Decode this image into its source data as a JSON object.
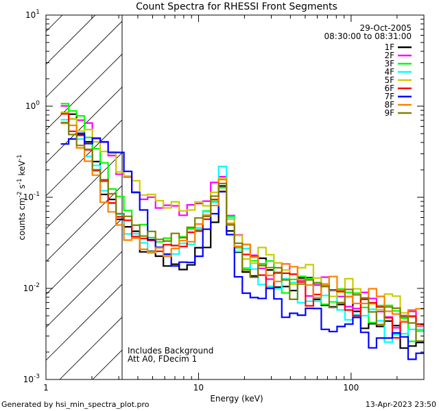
{
  "footer": {
    "generated_by": "Generated by hsi_min_spectra_plot.pro",
    "timestamp": "13-Apr-2023 23:50"
  },
  "chart_data": {
    "type": "line",
    "title": "Count Spectra for RHESSI Front Segments",
    "xlabel": "Energy (keV)",
    "ylabel": "counts cm-2 s-1 keV-1",
    "xscale": "log",
    "yscale": "log",
    "xlim": [
      1,
      300
    ],
    "ylim": [
      0.001,
      10
    ],
    "x_ticks": [
      {
        "value": 1,
        "label": "1"
      },
      {
        "value": 10,
        "label": "10"
      },
      {
        "value": 100,
        "label": "100"
      }
    ],
    "y_ticks": [
      {
        "value": 10,
        "base": "10",
        "exp": "1"
      },
      {
        "value": 1,
        "base": "10",
        "exp": "0"
      },
      {
        "value": 0.1,
        "base": "10",
        "exp": "-1"
      },
      {
        "value": 0.01,
        "base": "10",
        "exp": "-2"
      },
      {
        "value": 0.001,
        "base": "10",
        "exp": "-3"
      }
    ],
    "date": "29-Oct-2005",
    "time_range": "08:30:00 to 08:31:00",
    "hatched_region": {
      "x_min": 1,
      "x_max": 3
    },
    "annotation": [
      "Includes Background",
      "Att A0, FDecim 1"
    ],
    "legend_position": "top-right",
    "series": [
      {
        "name": "1F",
        "color": "#000000",
        "values": [
          0.85,
          0.75,
          0.55,
          0.38,
          0.24,
          0.12,
          0.085,
          0.06,
          0.05,
          0.038,
          0.028,
          0.025,
          0.021,
          0.02,
          0.017,
          0.016,
          0.02,
          0.025,
          0.03,
          0.055,
          0.12,
          0.048,
          0.024,
          0.018,
          0.015,
          0.016,
          0.014,
          0.013,
          0.012,
          0.011,
          0.011,
          0.01,
          0.009,
          0.008,
          0.007,
          0.0065,
          0.006,
          0.0055,
          0.005,
          0.0045,
          0.004,
          0.0035,
          0.0032,
          0.003,
          0.0028,
          0.0026
        ]
      },
      {
        "name": "2F",
        "color": "#ff00ff",
        "values": [
          0.9,
          0.8,
          0.7,
          0.6,
          0.5,
          0.38,
          0.28,
          0.2,
          0.15,
          0.12,
          0.1,
          0.09,
          0.085,
          0.08,
          0.075,
          0.072,
          0.076,
          0.085,
          0.1,
          0.13,
          0.18,
          0.065,
          0.035,
          0.027,
          0.022,
          0.02,
          0.018,
          0.016,
          0.015,
          0.014,
          0.013,
          0.012,
          0.011,
          0.01,
          0.009,
          0.0085,
          0.008,
          0.0075,
          0.007,
          0.0065,
          0.006,
          0.0055,
          0.005,
          0.0045,
          0.0042,
          0.004
        ]
      },
      {
        "name": "3F",
        "color": "#00ff00",
        "values": [
          1.1,
          0.95,
          0.7,
          0.5,
          0.34,
          0.22,
          0.14,
          0.095,
          0.07,
          0.055,
          0.045,
          0.038,
          0.034,
          0.032,
          0.033,
          0.036,
          0.042,
          0.05,
          0.065,
          0.09,
          0.14,
          0.055,
          0.03,
          0.023,
          0.019,
          0.017,
          0.016,
          0.015,
          0.014,
          0.013,
          0.012,
          0.011,
          0.01,
          0.0095,
          0.009,
          0.0085,
          0.008,
          0.0075,
          0.007,
          0.0065,
          0.006,
          0.0055,
          0.005,
          0.0045,
          0.004,
          0.0038
        ]
      },
      {
        "name": "4F",
        "color": "#00ffff",
        "values": [
          0.8,
          0.65,
          0.45,
          0.3,
          0.2,
          0.13,
          0.085,
          0.06,
          0.045,
          0.037,
          0.031,
          0.028,
          0.025,
          0.024,
          0.025,
          0.028,
          0.034,
          0.045,
          0.065,
          0.1,
          0.2,
          0.06,
          0.028,
          0.02,
          0.016,
          0.014,
          0.012,
          0.011,
          0.01,
          0.0095,
          0.009,
          0.0085,
          0.008,
          0.0075,
          0.007,
          0.0065,
          0.006,
          0.0055,
          0.005,
          0.0045,
          0.004,
          0.0037,
          0.0035,
          0.0032,
          0.003,
          0.0028
        ]
      },
      {
        "name": "5F",
        "color": "#cccc00",
        "values": [
          0.8,
          0.7,
          0.6,
          0.5,
          0.42,
          0.34,
          0.27,
          0.21,
          0.17,
          0.14,
          0.12,
          0.1,
          0.09,
          0.085,
          0.08,
          0.075,
          0.076,
          0.08,
          0.09,
          0.11,
          0.15,
          0.065,
          0.035,
          0.028,
          0.024,
          0.022,
          0.02,
          0.019,
          0.018,
          0.016,
          0.015,
          0.014,
          0.013,
          0.012,
          0.011,
          0.01,
          0.0095,
          0.009,
          0.0085,
          0.008,
          0.0075,
          0.007,
          0.0065,
          0.006,
          0.0055,
          0.005
        ]
      },
      {
        "name": "6F",
        "color": "#ff0000",
        "values": [
          0.75,
          0.6,
          0.45,
          0.32,
          0.22,
          0.14,
          0.09,
          0.065,
          0.05,
          0.041,
          0.035,
          0.031,
          0.029,
          0.028,
          0.029,
          0.032,
          0.037,
          0.045,
          0.06,
          0.085,
          0.13,
          0.05,
          0.027,
          0.021,
          0.018,
          0.016,
          0.015,
          0.014,
          0.013,
          0.012,
          0.011,
          0.01,
          0.0095,
          0.009,
          0.0085,
          0.008,
          0.0075,
          0.007,
          0.0065,
          0.006,
          0.0055,
          0.005,
          0.0045,
          0.0042,
          0.004,
          0.0037
        ]
      },
      {
        "name": "7F",
        "color": "#0000ff",
        "values": [
          0.42,
          0.44,
          0.46,
          0.44,
          0.42,
          0.39,
          0.35,
          0.28,
          0.2,
          0.12,
          0.065,
          0.038,
          0.028,
          0.022,
          0.02,
          0.018,
          0.019,
          0.025,
          0.04,
          0.07,
          0.12,
          0.035,
          0.015,
          0.011,
          0.009,
          0.008,
          0.0075,
          0.007,
          0.0065,
          0.006,
          0.0055,
          0.005,
          0.0047,
          0.0045,
          0.0042,
          0.004,
          0.0038,
          0.0036,
          0.0034,
          0.0032,
          0.003,
          0.0028,
          0.0026,
          0.0025,
          0.0024,
          0.0023
        ]
      },
      {
        "name": "8F",
        "color": "#ff8000",
        "values": [
          0.7,
          0.55,
          0.38,
          0.25,
          0.16,
          0.1,
          0.065,
          0.048,
          0.038,
          0.032,
          0.028,
          0.026,
          0.025,
          0.025,
          0.027,
          0.031,
          0.037,
          0.047,
          0.063,
          0.09,
          0.14,
          0.055,
          0.03,
          0.023,
          0.02,
          0.018,
          0.017,
          0.016,
          0.015,
          0.014,
          0.013,
          0.012,
          0.011,
          0.0105,
          0.01,
          0.0095,
          0.009,
          0.0085,
          0.008,
          0.0075,
          0.007,
          0.0065,
          0.006,
          0.0055,
          0.005,
          0.0045
        ]
      },
      {
        "name": "9F",
        "color": "#808000",
        "values": [
          0.6,
          0.5,
          0.4,
          0.3,
          0.22,
          0.15,
          0.1,
          0.075,
          0.058,
          0.048,
          0.042,
          0.038,
          0.036,
          0.035,
          0.036,
          0.04,
          0.046,
          0.055,
          0.07,
          0.095,
          0.14,
          0.055,
          0.028,
          0.021,
          0.018,
          0.016,
          0.015,
          0.014,
          0.013,
          0.012,
          0.011,
          0.0105,
          0.01,
          0.0095,
          0.009,
          0.0085,
          0.008,
          0.0075,
          0.007,
          0.0065,
          0.006,
          0.0055,
          0.005,
          0.0045,
          0.0042,
          0.004
        ]
      }
    ]
  }
}
